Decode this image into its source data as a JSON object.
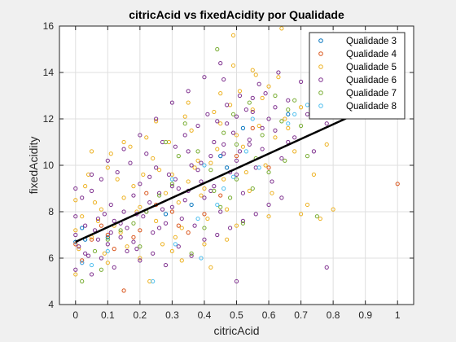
{
  "chart_data": {
    "type": "scatter",
    "title": "citricAcid vs fixedAcidity por Qualidade",
    "xlabel": "citricAcid",
    "ylabel": "fixedAcidity",
    "xlim": [
      -0.05,
      1.05
    ],
    "ylim": [
      4,
      16
    ],
    "xticks": [
      "0",
      "0.1",
      "0.2",
      "0.3",
      "0.4",
      "0.5",
      "0.6",
      "0.7",
      "0.8",
      "0.9",
      "1"
    ],
    "yticks": [
      "4",
      "6",
      "8",
      "10",
      "12",
      "14",
      "16"
    ],
    "grid": true,
    "legend_position": "top-right",
    "series": [
      {
        "name": "Qualidade 3",
        "color": "#0072BD",
        "points": [
          [
            0.02,
            7.3
          ],
          [
            0.03,
            6.8
          ],
          [
            0.28,
            7.9
          ],
          [
            0.45,
            10.4
          ],
          [
            0.52,
            11.6
          ],
          [
            0.66,
            12.2
          ],
          [
            0.0,
            6.7
          ],
          [
            0.1,
            6.9
          ],
          [
            0.36,
            8.3
          ],
          [
            0.47,
            9.9
          ]
        ]
      },
      {
        "name": "Qualidade 4",
        "color": "#D95319",
        "points": [
          [
            1.0,
            9.2
          ],
          [
            0.15,
            4.6
          ],
          [
            0.4,
            7.9
          ],
          [
            0.25,
            8.3
          ],
          [
            0.1,
            7.0
          ],
          [
            0.55,
            11.6
          ],
          [
            0.32,
            7.4
          ],
          [
            0.0,
            6.6
          ],
          [
            0.05,
            6.8
          ],
          [
            0.2,
            7.2
          ],
          [
            0.45,
            8.7
          ],
          [
            0.6,
            9.9
          ],
          [
            0.12,
            6.4
          ],
          [
            0.08,
            7.4
          ],
          [
            0.3,
            8.0
          ],
          [
            0.5,
            10.4
          ],
          [
            0.35,
            7.1
          ],
          [
            0.18,
            6.9
          ],
          [
            0.02,
            5.9
          ],
          [
            0.22,
            8.8
          ]
        ]
      },
      {
        "name": "Qualidade 5",
        "color": "#EDB120",
        "points": [
          [
            0.49,
            15.6
          ],
          [
            0.64,
            15.9
          ],
          [
            0.76,
            7.7
          ],
          [
            0.23,
            5.0
          ],
          [
            0.1,
            9.9
          ],
          [
            0.2,
            8.2
          ],
          [
            0.28,
            8.8
          ],
          [
            0.35,
            9.3
          ],
          [
            0.42,
            10.1
          ],
          [
            0.5,
            11.3
          ],
          [
            0.55,
            12.4
          ],
          [
            0.0,
            7.2
          ],
          [
            0.02,
            7.8
          ],
          [
            0.05,
            6.9
          ],
          [
            0.08,
            8.1
          ],
          [
            0.12,
            7.4
          ],
          [
            0.15,
            8.6
          ],
          [
            0.18,
            9.1
          ],
          [
            0.25,
            7.6
          ],
          [
            0.3,
            9.6
          ],
          [
            0.32,
            8.4
          ],
          [
            0.38,
            10.2
          ],
          [
            0.4,
            9.0
          ],
          [
            0.45,
            11.8
          ],
          [
            0.48,
            12.6
          ],
          [
            0.52,
            10.8
          ],
          [
            0.58,
            12.9
          ],
          [
            0.6,
            13.4
          ],
          [
            0.62,
            11.2
          ],
          [
            0.65,
            12.0
          ],
          [
            0.68,
            10.6
          ],
          [
            0.7,
            12.5
          ],
          [
            0.72,
            8.3
          ],
          [
            0.74,
            9.6
          ],
          [
            0.78,
            10.9
          ],
          [
            0.03,
            9.1
          ],
          [
            0.06,
            8.4
          ],
          [
            0.09,
            6.2
          ],
          [
            0.11,
            10.5
          ],
          [
            0.14,
            7.1
          ],
          [
            0.17,
            10.8
          ],
          [
            0.21,
            9.6
          ],
          [
            0.24,
            10.3
          ],
          [
            0.27,
            6.6
          ],
          [
            0.29,
            11.0
          ],
          [
            0.33,
            7.3
          ],
          [
            0.36,
            11.5
          ],
          [
            0.39,
            8.7
          ],
          [
            0.43,
            12.3
          ],
          [
            0.46,
            9.4
          ],
          [
            0.51,
            13.2
          ],
          [
            0.54,
            8.9
          ],
          [
            0.57,
            11.7
          ],
          [
            0.59,
            10.0
          ],
          [
            0.63,
            13.8
          ],
          [
            0.0,
            8.5
          ],
          [
            0.01,
            6.4
          ],
          [
            0.04,
            9.6
          ],
          [
            0.07,
            7.6
          ],
          [
            0.13,
            9.4
          ],
          [
            0.16,
            6.5
          ],
          [
            0.19,
            8.0
          ],
          [
            0.22,
            11.2
          ],
          [
            0.26,
            9.8
          ],
          [
            0.31,
            6.9
          ],
          [
            0.34,
            12.1
          ],
          [
            0.37,
            9.9
          ],
          [
            0.41,
            7.7
          ],
          [
            0.44,
            10.7
          ],
          [
            0.47,
            8.1
          ],
          [
            0.49,
            14.3
          ],
          [
            0.53,
            9.7
          ],
          [
            0.56,
            13.9
          ],
          [
            0.61,
            8.8
          ],
          [
            0.66,
            11.6
          ],
          [
            0.0,
            5.3
          ],
          [
            0.1,
            5.8
          ],
          [
            0.2,
            6.0
          ],
          [
            0.3,
            6.3
          ],
          [
            0.4,
            6.6
          ],
          [
            0.5,
            7.4
          ],
          [
            0.6,
            7.8
          ],
          [
            0.7,
            7.9
          ],
          [
            0.8,
            8.1
          ],
          [
            0.05,
            10.6
          ],
          [
            0.15,
            11.0
          ],
          [
            0.25,
            11.9
          ],
          [
            0.35,
            12.7
          ],
          [
            0.45,
            13.1
          ],
          [
            0.55,
            14.1
          ],
          [
            0.42,
            5.6
          ],
          [
            0.33,
            5.9
          ],
          [
            0.47,
            6.8
          ]
        ]
      },
      {
        "name": "Qualidade 6",
        "color": "#7E2F8E",
        "points": [
          [
            0.78,
            5.6
          ],
          [
            0.5,
            5.0
          ],
          [
            0.63,
            14.0
          ],
          [
            0.46,
            13.7
          ],
          [
            0.55,
            12.9
          ],
          [
            0.0,
            7.0
          ],
          [
            0.0,
            7.8
          ],
          [
            0.01,
            6.5
          ],
          [
            0.02,
            8.6
          ],
          [
            0.03,
            7.4
          ],
          [
            0.04,
            6.1
          ],
          [
            0.05,
            8.9
          ],
          [
            0.06,
            7.2
          ],
          [
            0.07,
            6.8
          ],
          [
            0.08,
            9.4
          ],
          [
            0.09,
            7.9
          ],
          [
            0.1,
            6.6
          ],
          [
            0.11,
            8.3
          ],
          [
            0.12,
            7.6
          ],
          [
            0.13,
            9.7
          ],
          [
            0.14,
            6.9
          ],
          [
            0.15,
            8.0
          ],
          [
            0.16,
            7.3
          ],
          [
            0.17,
            10.1
          ],
          [
            0.18,
            8.7
          ],
          [
            0.19,
            6.4
          ],
          [
            0.2,
            9.2
          ],
          [
            0.21,
            7.8
          ],
          [
            0.22,
            10.5
          ],
          [
            0.23,
            8.4
          ],
          [
            0.24,
            7.1
          ],
          [
            0.25,
            9.9
          ],
          [
            0.26,
            8.8
          ],
          [
            0.27,
            11.0
          ],
          [
            0.28,
            7.5
          ],
          [
            0.29,
            9.6
          ],
          [
            0.3,
            8.2
          ],
          [
            0.31,
            10.8
          ],
          [
            0.32,
            9.0
          ],
          [
            0.33,
            7.7
          ],
          [
            0.34,
            11.3
          ],
          [
            0.35,
            8.9
          ],
          [
            0.36,
            10.0
          ],
          [
            0.37,
            7.4
          ],
          [
            0.38,
            11.7
          ],
          [
            0.39,
            9.3
          ],
          [
            0.4,
            8.6
          ],
          [
            0.41,
            12.2
          ],
          [
            0.42,
            10.4
          ],
          [
            0.43,
            9.1
          ],
          [
            0.44,
            11.9
          ],
          [
            0.45,
            8.0
          ],
          [
            0.46,
            10.9
          ],
          [
            0.47,
            12.6
          ],
          [
            0.48,
            9.7
          ],
          [
            0.49,
            11.4
          ],
          [
            0.5,
            10.2
          ],
          [
            0.51,
            13.0
          ],
          [
            0.52,
            8.8
          ],
          [
            0.53,
            12.4
          ],
          [
            0.54,
            11.1
          ],
          [
            0.56,
            9.9
          ],
          [
            0.57,
            13.5
          ],
          [
            0.58,
            10.7
          ],
          [
            0.6,
            12.0
          ],
          [
            0.61,
            9.3
          ],
          [
            0.62,
            11.5
          ],
          [
            0.64,
            10.3
          ],
          [
            0.66,
            12.8
          ],
          [
            0.68,
            11.2
          ],
          [
            0.7,
            13.6
          ],
          [
            0.72,
            12.2
          ],
          [
            0.74,
            10.6
          ],
          [
            0.76,
            12.9
          ],
          [
            0.78,
            11.8
          ],
          [
            0.0,
            5.5
          ],
          [
            0.0,
            9.0
          ],
          [
            0.02,
            5.8
          ],
          [
            0.05,
            5.3
          ],
          [
            0.08,
            6.0
          ],
          [
            0.12,
            5.6
          ],
          [
            0.16,
            6.3
          ],
          [
            0.2,
            5.9
          ],
          [
            0.24,
            6.2
          ],
          [
            0.28,
            5.7
          ],
          [
            0.32,
            6.5
          ],
          [
            0.36,
            6.1
          ],
          [
            0.4,
            6.8
          ],
          [
            0.44,
            7.0
          ],
          [
            0.48,
            7.3
          ],
          [
            0.52,
            7.6
          ],
          [
            0.56,
            7.9
          ],
          [
            0.6,
            8.3
          ],
          [
            0.64,
            8.6
          ],
          [
            0.05,
            9.6
          ],
          [
            0.1,
            10.2
          ],
          [
            0.15,
            10.7
          ],
          [
            0.2,
            11.3
          ],
          [
            0.25,
            12.0
          ],
          [
            0.3,
            12.7
          ],
          [
            0.35,
            13.2
          ],
          [
            0.4,
            13.8
          ],
          [
            0.45,
            14.4
          ],
          [
            0.5,
            12.1
          ],
          [
            0.14,
            7.5
          ],
          [
            0.18,
            6.7
          ],
          [
            0.22,
            8.0
          ],
          [
            0.26,
            7.3
          ],
          [
            0.3,
            9.1
          ],
          [
            0.34,
            8.5
          ],
          [
            0.38,
            9.8
          ],
          [
            0.42,
            8.9
          ],
          [
            0.46,
            10.5
          ],
          [
            0.5,
            9.6
          ],
          [
            0.54,
            10.9
          ],
          [
            0.58,
            11.6
          ],
          [
            0.62,
            12.5
          ],
          [
            0.66,
            11.0
          ],
          [
            0.03,
            6.2
          ],
          [
            0.07,
            7.7
          ],
          [
            0.11,
            7.1
          ],
          [
            0.19,
            7.9
          ],
          [
            0.23,
            9.5
          ],
          [
            0.27,
            8.1
          ],
          [
            0.31,
            9.4
          ],
          [
            0.35,
            10.6
          ],
          [
            0.39,
            10.1
          ],
          [
            0.43,
            11.0
          ],
          [
            0.47,
            11.8
          ],
          [
            0.51,
            10.6
          ],
          [
            0.55,
            12.3
          ],
          [
            0.59,
            13.1
          ]
        ]
      },
      {
        "name": "Qualidade 7",
        "color": "#77AC30",
        "points": [
          [
            0.44,
            15.0
          ],
          [
            0.76,
            12.6
          ],
          [
            0.72,
            10.4
          ],
          [
            0.49,
            12.2
          ],
          [
            0.34,
            11.8
          ],
          [
            0.38,
            10.6
          ],
          [
            0.42,
            9.8
          ],
          [
            0.46,
            11.4
          ],
          [
            0.5,
            10.9
          ],
          [
            0.54,
            12.7
          ],
          [
            0.58,
            11.3
          ],
          [
            0.62,
            13.0
          ],
          [
            0.66,
            12.4
          ],
          [
            0.7,
            11.7
          ],
          [
            0.3,
            9.2
          ],
          [
            0.26,
            8.7
          ],
          [
            0.22,
            8.0
          ],
          [
            0.18,
            7.5
          ],
          [
            0.14,
            7.2
          ],
          [
            0.1,
            6.8
          ],
          [
            0.06,
            6.3
          ],
          [
            0.02,
            5.0
          ],
          [
            0.4,
            7.3
          ],
          [
            0.45,
            8.2
          ],
          [
            0.55,
            9.0
          ],
          [
            0.6,
            9.7
          ],
          [
            0.65,
            10.2
          ],
          [
            0.75,
            7.8
          ],
          [
            0.52,
            7.5
          ],
          [
            0.36,
            6.2
          ],
          [
            0.48,
            8.6
          ],
          [
            0.32,
            10.4
          ],
          [
            0.28,
            11.0
          ],
          [
            0.56,
            10.3
          ],
          [
            0.64,
            11.9
          ],
          [
            0.08,
            5.5
          ],
          [
            0.2,
            6.5
          ],
          [
            0.43,
            8.9
          ],
          [
            0.5,
            9.4
          ],
          [
            0.68,
            12.8
          ]
        ]
      },
      {
        "name": "Qualidade 8",
        "color": "#4DBEEE",
        "points": [
          [
            0.72,
            12.6
          ],
          [
            0.49,
            9.5
          ],
          [
            0.24,
            5.0
          ],
          [
            0.05,
            5.7
          ],
          [
            0.38,
            7.7
          ],
          [
            0.53,
            10.6
          ],
          [
            0.31,
            6.6
          ],
          [
            0.44,
            8.3
          ],
          [
            0.55,
            12.0
          ],
          [
            0.66,
            11.8
          ],
          [
            0.02,
            5.8
          ],
          [
            0.39,
            6.0
          ],
          [
            0.46,
            9.0
          ],
          [
            0.57,
            9.9
          ],
          [
            0.68,
            12.2
          ],
          [
            0.3,
            9.4
          ],
          [
            0.1,
            6.3
          ],
          [
            0.4,
            10.0
          ]
        ]
      }
    ],
    "fit_line": {
      "color": "#000000",
      "x": [
        0,
        0.9
      ],
      "y": [
        6.7,
        12.4
      ]
    }
  }
}
